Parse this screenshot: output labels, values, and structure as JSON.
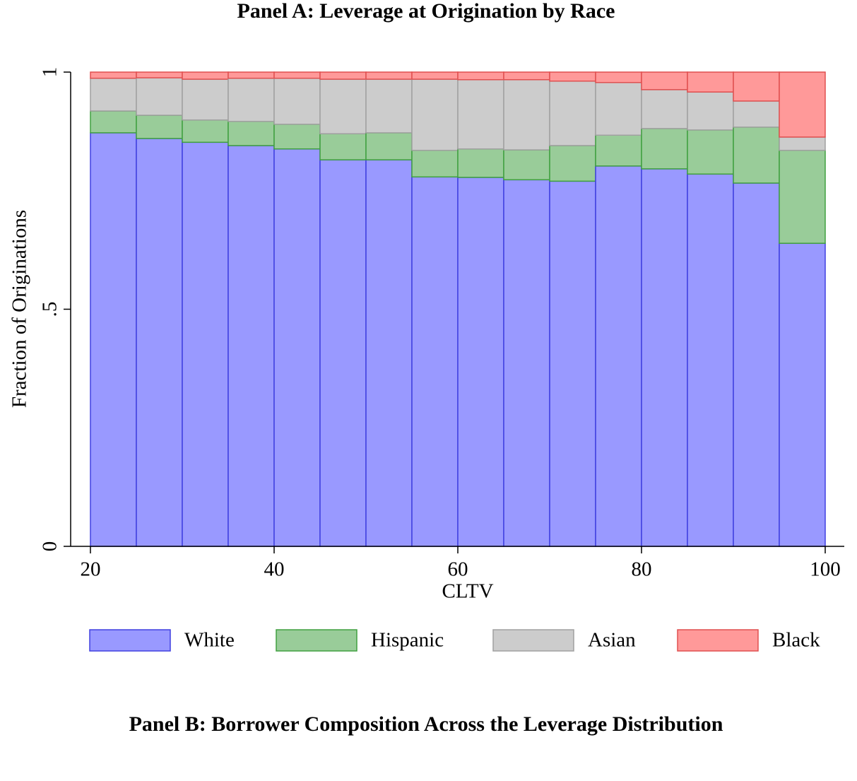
{
  "chart_data": {
    "type": "histogram",
    "title": "Panel A: Leverage at Origination by Race",
    "xlabel": "CLTV",
    "ylabel": "Fraction of Originations",
    "bins": [
      20,
      25,
      30,
      35,
      40,
      45,
      50,
      55,
      60,
      65,
      70,
      75,
      80,
      85,
      90,
      95,
      100
    ],
    "series": [
      {
        "name": "White",
        "color": "#9999ff",
        "edge": "#4040e0",
        "values": [
          0.872,
          0.86,
          0.852,
          0.845,
          0.838,
          0.815,
          0.815,
          0.779,
          0.778,
          0.773,
          0.77,
          0.802,
          0.796,
          0.785,
          0.766,
          0.639
        ]
      },
      {
        "name": "Hispanic",
        "color": "#99cc99",
        "edge": "#40a040",
        "values": [
          0.046,
          0.049,
          0.047,
          0.051,
          0.052,
          0.055,
          0.057,
          0.056,
          0.06,
          0.063,
          0.075,
          0.065,
          0.085,
          0.093,
          0.118,
          0.196
        ]
      },
      {
        "name": "Asian",
        "color": "#cccccc",
        "edge": "#a0a0a0",
        "values": [
          0.069,
          0.079,
          0.086,
          0.091,
          0.097,
          0.115,
          0.113,
          0.15,
          0.146,
          0.148,
          0.136,
          0.111,
          0.082,
          0.08,
          0.055,
          0.028
        ]
      },
      {
        "name": "Black",
        "color": "#ff9999",
        "edge": "#e05050",
        "values": [
          0.013,
          0.012,
          0.015,
          0.013,
          0.013,
          0.015,
          0.015,
          0.015,
          0.016,
          0.016,
          0.019,
          0.022,
          0.037,
          0.042,
          0.061,
          0.137
        ]
      }
    ],
    "xlim": [
      20,
      100
    ],
    "ylim": [
      0,
      1
    ],
    "xticks": [
      20,
      40,
      60,
      80,
      100
    ],
    "yticks": [
      0,
      {
        "value": 0.5,
        "label": ".5"
      },
      1
    ],
    "legend": "bottom"
  },
  "panel_b": {
    "title": "Panel B: Borrower Composition Across the Leverage Distribution"
  }
}
